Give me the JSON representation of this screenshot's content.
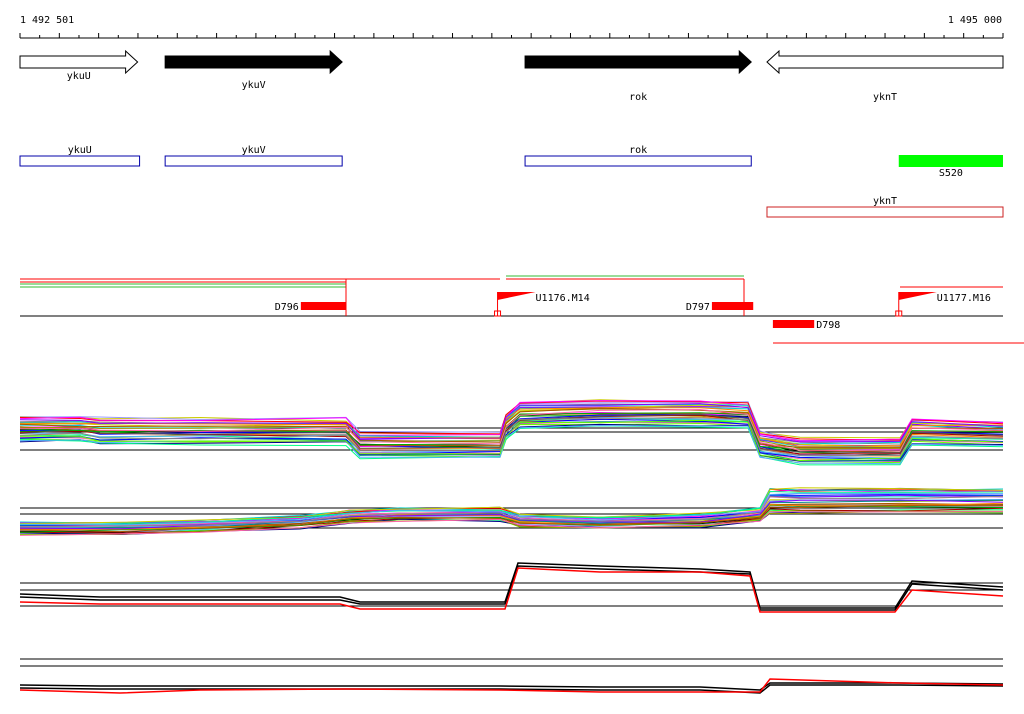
{
  "ruler": {
    "start_label": "1 492 501",
    "end_label": "1 495 000",
    "start": 1492501,
    "end": 1495000
  },
  "colors": {
    "black": "#000000",
    "red": "#ff0000",
    "green": "#00ff00",
    "blue_outline": "#0000aa",
    "red_outline": "#cc2222",
    "track_green": "#33bb33",
    "palette": [
      "#ff0000",
      "#00aa00",
      "#0000ff",
      "#ff00ff",
      "#00cccc",
      "#cccc00",
      "#ff8800",
      "#8800ff",
      "#00ff88",
      "#888888",
      "#aa5500",
      "#55aaff",
      "#ff66aa",
      "#66ff00",
      "#000088",
      "#008888",
      "#aa0000",
      "#999900",
      "#9999ff",
      "#555555"
    ]
  },
  "genes": [
    {
      "label": "ykuU",
      "start": 1492501,
      "end": 1492800,
      "strand": "+",
      "filled": false
    },
    {
      "label": "ykuV",
      "start": 1492870,
      "end": 1493320,
      "strand": "+",
      "filled": true
    },
    {
      "label": "rok",
      "start": 1493785,
      "end": 1494360,
      "strand": "+",
      "filled": true
    },
    {
      "label": "yknT",
      "start": 1494400,
      "end": 1495000,
      "strand": "-",
      "filled": false
    }
  ],
  "annot_boxes_top": [
    {
      "label": "ykuU",
      "start": 1492501,
      "end": 1492805
    },
    {
      "label": "ykuV",
      "start": 1492870,
      "end": 1493320
    },
    {
      "label": "rok",
      "start": 1493785,
      "end": 1494360
    }
  ],
  "s_feature": {
    "label": "S520",
    "start": 1494735,
    "end": 1495000
  },
  "annot_boxes_lower": [
    {
      "label": "yknT",
      "start": 1494400,
      "end": 1495000
    }
  ],
  "d_segments": [
    {
      "label": "D796",
      "start": 1493215,
      "end": 1493330
    },
    {
      "label": "D797",
      "start": 1494260,
      "end": 1494365
    },
    {
      "label": "D798",
      "start": 1494415,
      "end": 1494520
    }
  ],
  "u_flags": [
    {
      "label": "U1176.M14",
      "pos": 1493715
    },
    {
      "label": "U1177.M16",
      "pos": 1494735
    }
  ]
}
